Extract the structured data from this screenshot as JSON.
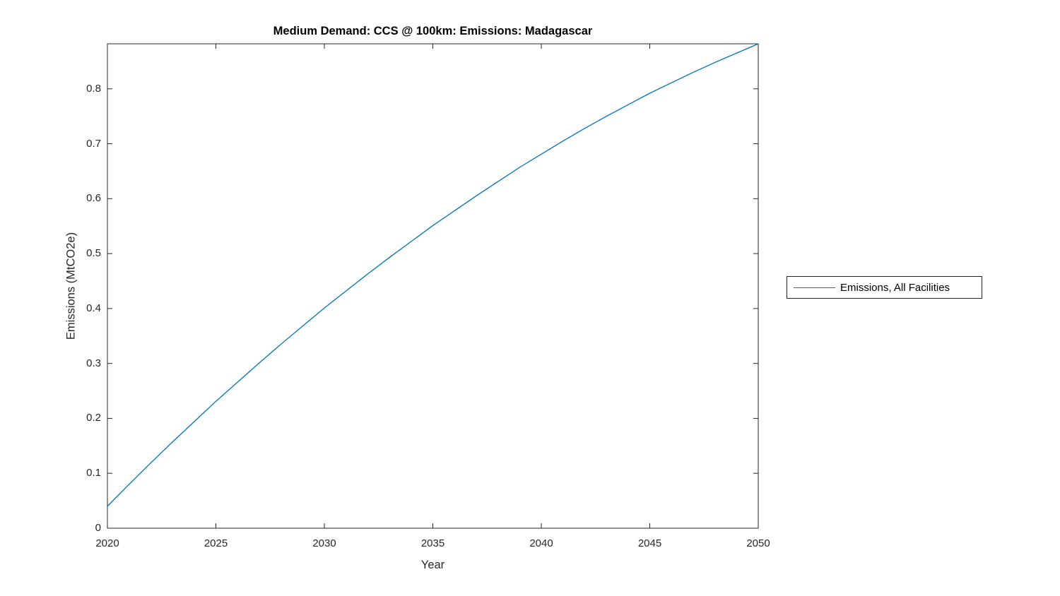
{
  "figure": {
    "background": "#ffffff"
  },
  "colors": {
    "line": "#0072BD",
    "axis": "#262626",
    "tick_text": "#262626",
    "title_text": "#000000"
  },
  "chart_data": {
    "type": "line",
    "title": "Medium Demand: CCS @ 100km: Emissions: Madagascar",
    "xlabel": "Year",
    "ylabel": "Emissions (MtCO2e)",
    "xlim": [
      2020,
      2050
    ],
    "ylim": [
      0,
      0.882
    ],
    "grid": false,
    "box": true,
    "tick_dir": "in",
    "xticks": {
      "values": [
        2020,
        2025,
        2030,
        2035,
        2040,
        2045,
        2050
      ],
      "labels": [
        "2020",
        "2025",
        "2030",
        "2035",
        "2040",
        "2045",
        "2050"
      ]
    },
    "yticks": {
      "values": [
        0,
        0.1,
        0.2,
        0.3,
        0.4,
        0.5,
        0.6,
        0.7,
        0.8
      ],
      "labels": [
        "0",
        "0.1",
        "0.2",
        "0.3",
        "0.4",
        "0.5",
        "0.6",
        "0.7",
        "0.8"
      ]
    },
    "legend": {
      "position": "outside-right",
      "border": true
    },
    "x": [
      2020,
      2021,
      2022,
      2023,
      2024,
      2025,
      2026,
      2027,
      2028,
      2029,
      2030,
      2031,
      2032,
      2033,
      2034,
      2035,
      2036,
      2037,
      2038,
      2039,
      2040,
      2041,
      2042,
      2043,
      2044,
      2045,
      2046,
      2047,
      2048,
      2049,
      2050
    ],
    "series": [
      {
        "name": "Emissions, All Facilities",
        "color": "#0072BD",
        "values": [
          0.04,
          0.08,
          0.119,
          0.157,
          0.194,
          0.231,
          0.266,
          0.301,
          0.335,
          0.368,
          0.401,
          0.432,
          0.463,
          0.493,
          0.522,
          0.551,
          0.578,
          0.605,
          0.631,
          0.657,
          0.681,
          0.705,
          0.728,
          0.75,
          0.771,
          0.792,
          0.811,
          0.83,
          0.848,
          0.865,
          0.882
        ]
      }
    ]
  }
}
